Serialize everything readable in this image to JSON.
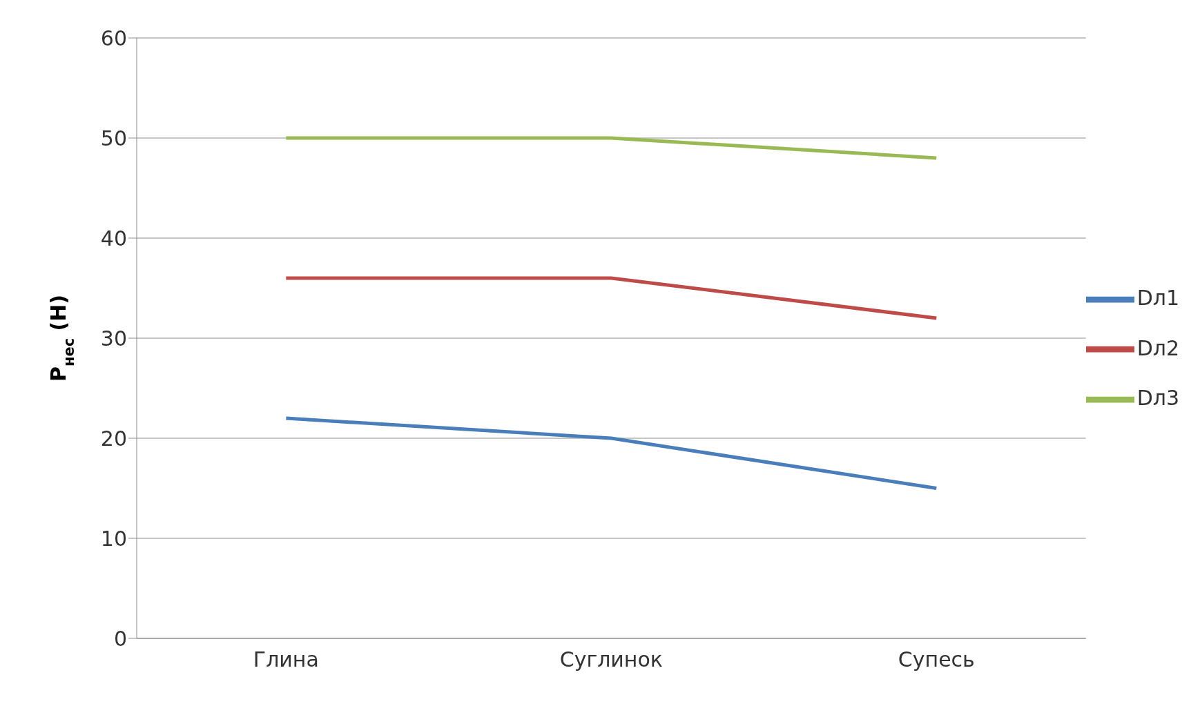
{
  "chart_data": {
    "type": "line",
    "ylabel": "P$_{нес}$ (Н)",
    "categories": [
      "Глина",
      "Суглинок",
      "Супесь"
    ],
    "series": [
      {
        "name": "Dл1",
        "color": "#4a7ebb",
        "values": [
          22,
          20,
          15
        ]
      },
      {
        "name": "Dл2",
        "color": "#be4b48",
        "values": [
          36,
          36,
          32
        ]
      },
      {
        "name": "Dл3",
        "color": "#98b954",
        "values": [
          50,
          50,
          48
        ]
      }
    ],
    "ylim": [
      0,
      60
    ],
    "yticks": [
      0,
      10,
      20,
      30,
      40,
      50,
      60
    ],
    "grid": "y",
    "legend": "right",
    "marker": "none",
    "line_style": "solid"
  }
}
